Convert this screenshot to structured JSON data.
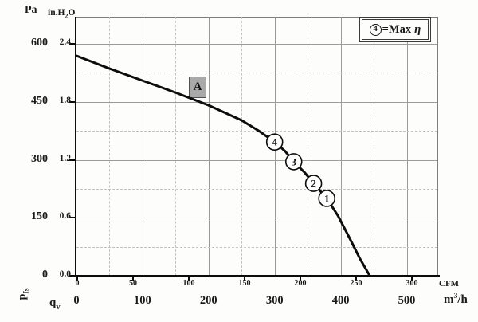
{
  "header_units": {
    "y_primary": "Pa",
    "y_secondary_prefix": "in.H",
    "y_secondary_sub": "2",
    "y_secondary_suffix": "O"
  },
  "axis_symbols": {
    "y_base": "p",
    "y_sub": "fs",
    "x_base": "q",
    "x_sub": "v"
  },
  "x_units": {
    "primary": "CFM",
    "secondary_prefix": "m",
    "secondary_sup": "3",
    "secondary_suffix": "/h"
  },
  "legend": {
    "marker_number": "4",
    "equals_text": "=Max",
    "eta_symbol": "η"
  },
  "curve_label": "A",
  "colors": {
    "curve": "#0d0d0d",
    "grid_solid": "#9b9b9b",
    "grid_dashed": "#c2c2c2",
    "axis": "#0c0c0c",
    "label_box_fill": "#a9a9a9",
    "marker_fill": "#ffffff"
  },
  "chart_data": {
    "type": "line",
    "description": "Fan static pressure vs volume flow curve with operating points; point 4 = maximum efficiency",
    "x_axes": [
      {
        "unit": "CFM",
        "ticks": [
          0,
          50,
          100,
          150,
          200,
          250,
          300
        ],
        "range": [
          0,
          322
        ]
      },
      {
        "unit": "m3/h",
        "ticks": [
          0,
          100,
          200,
          300,
          400,
          500
        ],
        "range": [
          0,
          548
        ]
      }
    ],
    "y_axes": [
      {
        "unit": "Pa",
        "ticks": [
          600,
          450,
          300,
          150,
          0
        ],
        "range": [
          0,
          670
        ]
      },
      {
        "unit": "in.H2O",
        "ticks": [
          "2.4",
          "1.8",
          "1.2",
          "0.6",
          "0.0"
        ],
        "range": [
          0,
          2.68
        ]
      }
    ],
    "grid": {
      "solid_x_m3h": [
        100,
        200,
        300,
        400,
        500
      ],
      "dashed_x_m3h": [
        50,
        150,
        250,
        350,
        450
      ],
      "solid_y_pa": [
        150,
        300,
        450,
        600
      ],
      "dashed_y_pa": [
        75,
        225,
        375,
        525
      ]
    },
    "series": [
      {
        "name": "A",
        "points_m3h_pa": [
          [
            0,
            569
          ],
          [
            50,
            536
          ],
          [
            100,
            505
          ],
          [
            150,
            474
          ],
          [
            200,
            441
          ],
          [
            250,
            402
          ],
          [
            276,
            375
          ],
          [
            300,
            346
          ],
          [
            316,
            322
          ],
          [
            329,
            295
          ],
          [
            345,
            268
          ],
          [
            359,
            239
          ],
          [
            379,
            200
          ],
          [
            396,
            155
          ],
          [
            413,
            99
          ],
          [
            429,
            45
          ],
          [
            444,
            0
          ]
        ]
      }
    ],
    "markers": [
      {
        "label": "4",
        "m3h": 300,
        "pa": 346,
        "note": "Max η"
      },
      {
        "label": "3",
        "m3h": 329,
        "pa": 295
      },
      {
        "label": "2",
        "m3h": 359,
        "pa": 239
      },
      {
        "label": "1",
        "m3h": 379,
        "pa": 200
      }
    ]
  }
}
